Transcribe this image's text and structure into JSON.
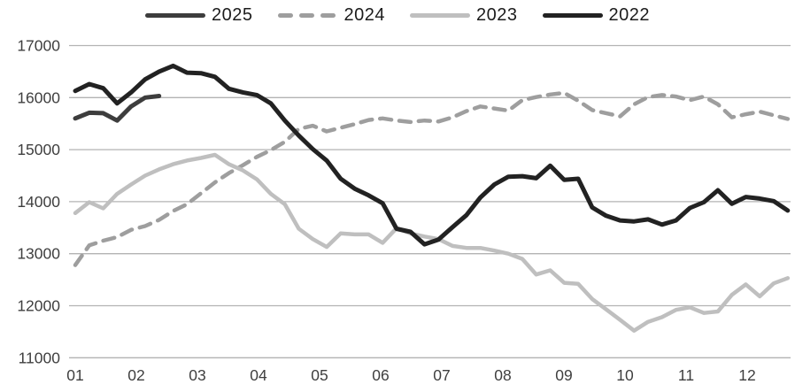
{
  "legend": [
    {
      "label": "2025",
      "color": "#3d3d3d",
      "dashed": false
    },
    {
      "label": "2024",
      "color": "#9e9e9e",
      "dashed": true
    },
    {
      "label": "2023",
      "color": "#bfbfbf",
      "dashed": false
    },
    {
      "label": "2022",
      "color": "#222222",
      "dashed": false
    }
  ],
  "chart_data": {
    "type": "line",
    "title": "",
    "xlabel": "",
    "ylabel": "",
    "x_unit": "month (weekly data points)",
    "x_tick_labels": [
      "01",
      "02",
      "03",
      "04",
      "05",
      "06",
      "07",
      "08",
      "09",
      "10",
      "11",
      "12"
    ],
    "y_ticks": [
      11000,
      12000,
      13000,
      14000,
      15000,
      16000,
      17000
    ],
    "ylim": [
      11000,
      17000
    ],
    "grid": "horizontal",
    "legend_position": "top",
    "series": [
      {
        "name": "2025",
        "style": "solid",
        "color": "#3d3d3d",
        "values": [
          15600,
          15710,
          15700,
          15560,
          15830,
          16000,
          16030
        ]
      },
      {
        "name": "2024",
        "style": "dashed",
        "color": "#9e9e9e",
        "values": [
          12780,
          13160,
          13250,
          13320,
          13460,
          13530,
          13650,
          13820,
          13950,
          14160,
          14370,
          14550,
          14700,
          14860,
          14990,
          15150,
          15400,
          15460,
          15350,
          15420,
          15490,
          15570,
          15600,
          15560,
          15530,
          15560,
          15540,
          15620,
          15740,
          15830,
          15790,
          15750,
          15950,
          16010,
          16060,
          16090,
          15940,
          15760,
          15700,
          15640,
          15870,
          16010,
          16050,
          16020,
          15950,
          16020,
          15870,
          15620,
          15680,
          15730,
          15660,
          15590
        ]
      },
      {
        "name": "2023",
        "style": "solid",
        "color": "#bfbfbf",
        "values": [
          13780,
          13990,
          13870,
          14150,
          14330,
          14500,
          14620,
          14720,
          14790,
          14840,
          14900,
          14720,
          14600,
          14430,
          14150,
          13950,
          13480,
          13280,
          13130,
          13390,
          13370,
          13370,
          13210,
          13490,
          13390,
          13330,
          13280,
          13150,
          13110,
          13110,
          13060,
          13000,
          12900,
          12600,
          12680,
          12440,
          12420,
          12130,
          11930,
          11730,
          11520,
          11690,
          11780,
          11920,
          11970,
          11860,
          11890,
          12210,
          12410,
          12180,
          12430,
          12530
        ]
      },
      {
        "name": "2022",
        "style": "solid",
        "color": "#222222",
        "values": [
          16130,
          16260,
          16180,
          15890,
          16100,
          16350,
          16500,
          16610,
          16480,
          16470,
          16400,
          16170,
          16100,
          16050,
          15890,
          15560,
          15270,
          15010,
          14790,
          14440,
          14250,
          14120,
          13970,
          13480,
          13420,
          13180,
          13270,
          13510,
          13740,
          14080,
          14330,
          14480,
          14490,
          14450,
          14690,
          14420,
          14440,
          13890,
          13730,
          13640,
          13620,
          13660,
          13560,
          13640,
          13880,
          13990,
          14220,
          13960,
          14090,
          14060,
          14010,
          13830
        ]
      }
    ]
  }
}
